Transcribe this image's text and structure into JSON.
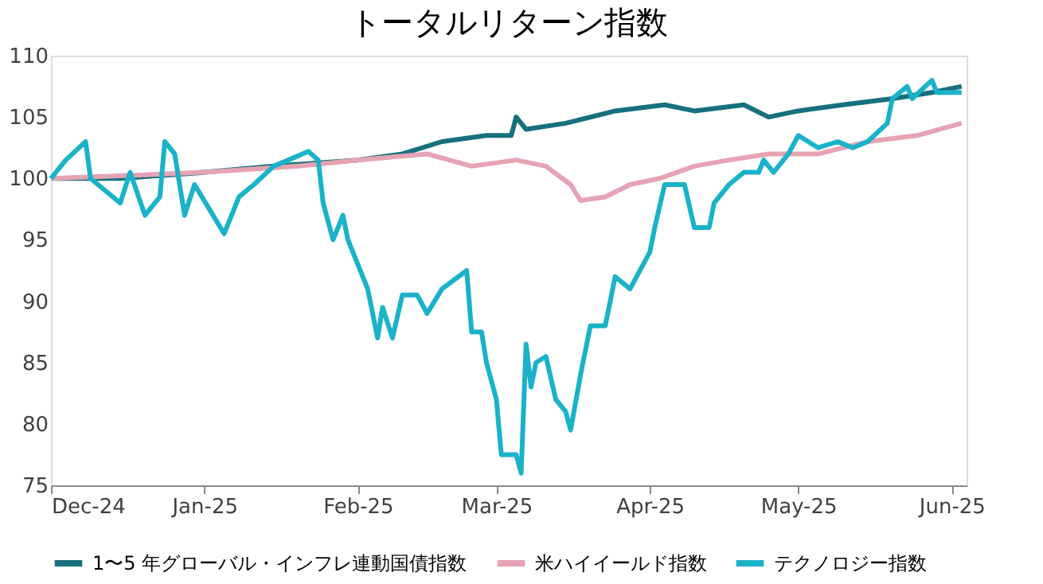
{
  "chart_data": {
    "type": "line",
    "title": "トータルリターン指数",
    "xlim": [
      "2024-12-01",
      "2025-06-04"
    ],
    "xticks": [
      {
        "value": "2024-12-01",
        "label": "Dec-24"
      },
      {
        "value": "2025-01-01",
        "label": "Jan-25"
      },
      {
        "value": "2025-02-01",
        "label": "Feb-25"
      },
      {
        "value": "2025-03-01",
        "label": "Mar-25"
      },
      {
        "value": "2025-04-01",
        "label": "Apr-25"
      },
      {
        "value": "2025-05-01",
        "label": "May-25"
      },
      {
        "value": "2025-06-01",
        "label": "Jun-25"
      }
    ],
    "ylim": [
      75,
      110
    ],
    "yticks": [
      75,
      80,
      85,
      90,
      95,
      100,
      105,
      110
    ],
    "grid": false,
    "legend": "bottom",
    "line_style": "solid",
    "series": [
      {
        "name": "1〜5 年グローバル・インフレ連動国債指数",
        "color": "#17707d",
        "x": [
          "2024-12-01",
          "2024-12-15",
          "2025-01-01",
          "2025-01-15",
          "2025-02-01",
          "2025-02-10",
          "2025-02-18",
          "2025-02-27",
          "2025-03-04",
          "2025-03-05",
          "2025-03-07",
          "2025-03-15",
          "2025-03-25",
          "2025-04-04",
          "2025-04-10",
          "2025-04-20",
          "2025-04-25",
          "2025-05-01",
          "2025-05-10",
          "2025-05-20",
          "2025-05-28",
          "2025-06-03"
        ],
        "values": [
          100,
          100,
          100.5,
          101,
          101.5,
          102,
          103,
          103.5,
          103.5,
          105,
          104,
          104.5,
          105.5,
          106,
          105.5,
          106,
          105,
          105.5,
          106,
          106.5,
          107,
          107.5
        ]
      },
      {
        "name": "米ハイイールド指数",
        "color": "#e6a3b3",
        "x": [
          "2024-12-01",
          "2024-12-20",
          "2025-01-01",
          "2025-01-20",
          "2025-02-01",
          "2025-02-15",
          "2025-02-24",
          "2025-03-05",
          "2025-03-11",
          "2025-03-16",
          "2025-03-18",
          "2025-03-23",
          "2025-03-28",
          "2025-04-03",
          "2025-04-10",
          "2025-04-17",
          "2025-04-25",
          "2025-05-05",
          "2025-05-15",
          "2025-05-25",
          "2025-06-03"
        ],
        "values": [
          100,
          100.3,
          100.5,
          101,
          101.5,
          102,
          101,
          101.5,
          101,
          99.5,
          98.2,
          98.5,
          99.5,
          100,
          101,
          101.5,
          102,
          102,
          103,
          103.5,
          104.5
        ]
      },
      {
        "name": "テクノロジー指数",
        "color": "#1ab2c9",
        "x": [
          "2024-12-01",
          "2024-12-04",
          "2024-12-08",
          "2024-12-09",
          "2024-12-12",
          "2024-12-15",
          "2024-12-17",
          "2024-12-20",
          "2024-12-23",
          "2024-12-24",
          "2024-12-26",
          "2024-12-28",
          "2024-12-30",
          "2025-01-02",
          "2025-01-05",
          "2025-01-08",
          "2025-01-11",
          "2025-01-15",
          "2025-01-18",
          "2025-01-22",
          "2025-01-24",
          "2025-01-25",
          "2025-01-27",
          "2025-01-29",
          "2025-01-30",
          "2025-02-02",
          "2025-02-03",
          "2025-02-05",
          "2025-02-06",
          "2025-02-08",
          "2025-02-10",
          "2025-02-13",
          "2025-02-15",
          "2025-02-18",
          "2025-02-23",
          "2025-02-24",
          "2025-02-26",
          "2025-02-27",
          "2025-03-01",
          "2025-03-02",
          "2025-03-05",
          "2025-03-06",
          "2025-03-07",
          "2025-03-08",
          "2025-03-09",
          "2025-03-11",
          "2025-03-13",
          "2025-03-15",
          "2025-03-16",
          "2025-03-18",
          "2025-03-20",
          "2025-03-23",
          "2025-03-25",
          "2025-03-28",
          "2025-04-01",
          "2025-04-02",
          "2025-04-04",
          "2025-04-08",
          "2025-04-10",
          "2025-04-13",
          "2025-04-14",
          "2025-04-17",
          "2025-04-20",
          "2025-04-23",
          "2025-04-24",
          "2025-04-26",
          "2025-04-29",
          "2025-05-01",
          "2025-05-05",
          "2025-05-09",
          "2025-05-12",
          "2025-05-15",
          "2025-05-19",
          "2025-05-20",
          "2025-05-23",
          "2025-05-24",
          "2025-05-28",
          "2025-05-29",
          "2025-06-01",
          "2025-06-03"
        ],
        "values": [
          100,
          101.5,
          103,
          100,
          99,
          98,
          100.5,
          97,
          98.5,
          103,
          102,
          97,
          99.5,
          97.5,
          95.5,
          98.5,
          99.5,
          101,
          101.5,
          102.2,
          101.5,
          98,
          95,
          97,
          95,
          92,
          91,
          87,
          89.5,
          87,
          90.5,
          90.5,
          89,
          91,
          92.5,
          87.5,
          87.5,
          85,
          82,
          77.5,
          77.5,
          76,
          86.5,
          83,
          85,
          85.5,
          82,
          81,
          79.5,
          84,
          88,
          88,
          92,
          91,
          94,
          96,
          99.5,
          99.5,
          96,
          96,
          98,
          99.5,
          100.5,
          100.5,
          101.5,
          100.5,
          102,
          103.5,
          102.5,
          103,
          102.5,
          103,
          104.5,
          106.5,
          107.5,
          106.5,
          108,
          107,
          107,
          107
        ]
      }
    ]
  }
}
